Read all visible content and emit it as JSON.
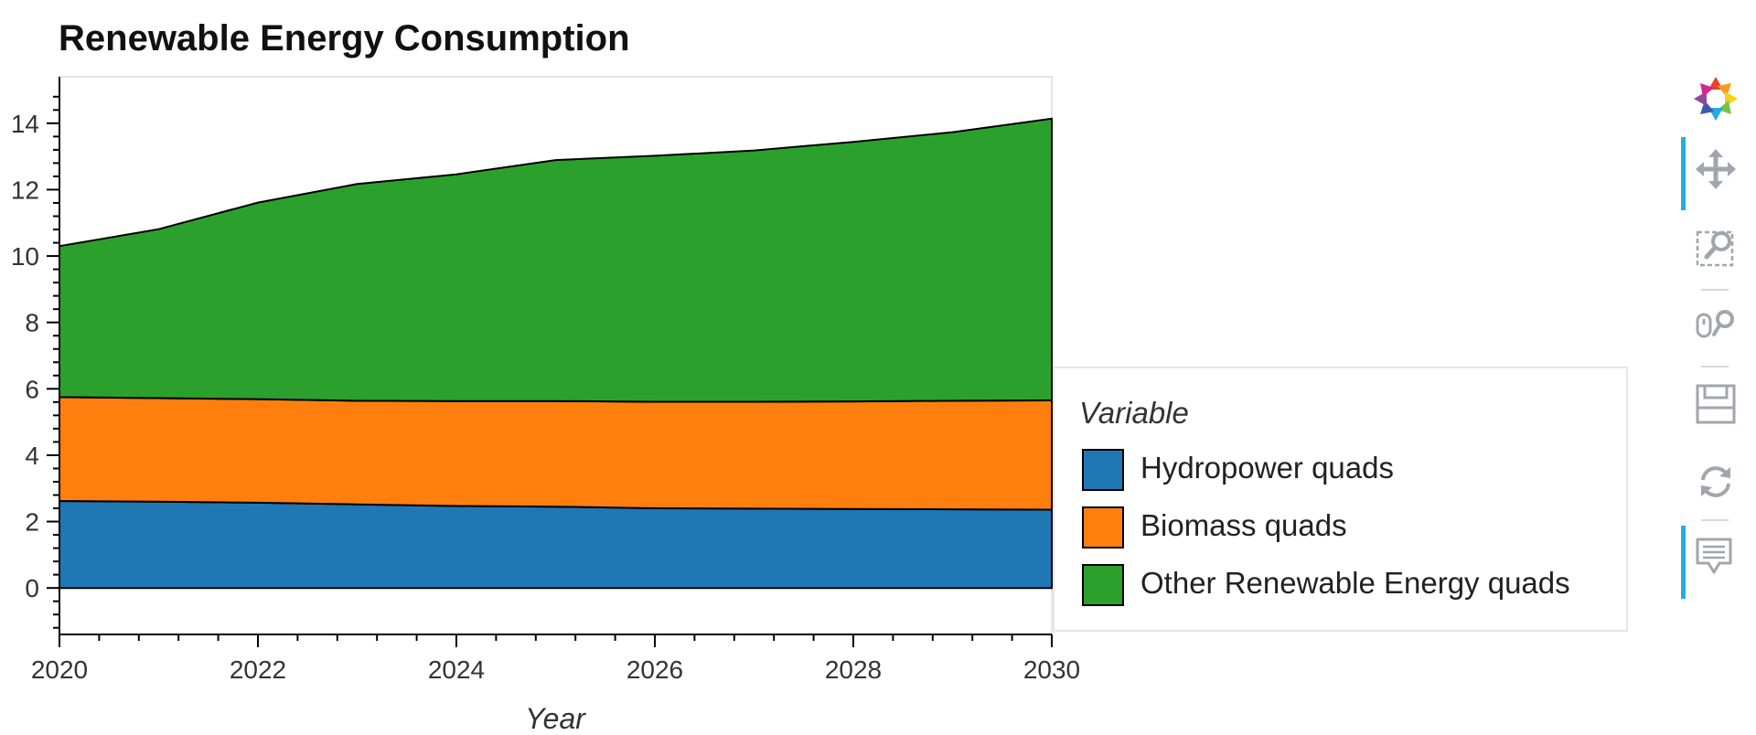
{
  "chart_data": {
    "type": "area",
    "stacked": true,
    "title": "Renewable Energy Consumption",
    "xlabel": "Year",
    "ylabel": "",
    "x": [
      2020,
      2021,
      2022,
      2023,
      2024,
      2025,
      2026,
      2027,
      2028,
      2029,
      2030
    ],
    "xlim": [
      2020,
      2030
    ],
    "ylim": [
      -1.4,
      15.4
    ],
    "x_ticks": [
      "2020",
      "2022",
      "2024",
      "2026",
      "2028",
      "2030"
    ],
    "y_ticks": [
      "0",
      "2",
      "4",
      "6",
      "8",
      "10",
      "12",
      "14"
    ],
    "series": [
      {
        "name": "Hydropower quads",
        "color": "#1f77b4",
        "values": [
          2.62,
          2.6,
          2.57,
          2.52,
          2.47,
          2.45,
          2.4,
          2.39,
          2.38,
          2.37,
          2.36
        ]
      },
      {
        "name": "Biomass quads",
        "color": "#ff7f0e",
        "values": [
          3.13,
          3.12,
          3.12,
          3.12,
          3.16,
          3.18,
          3.21,
          3.22,
          3.24,
          3.27,
          3.29
        ]
      },
      {
        "name": "Other Renewable Energy quads",
        "color": "#2ca02c",
        "values": [
          4.55,
          5.09,
          5.92,
          6.53,
          6.83,
          7.26,
          7.41,
          7.57,
          7.82,
          8.09,
          8.49
        ]
      }
    ],
    "legend": {
      "title": "Variable",
      "position": "right"
    },
    "grid": false
  },
  "toolbar": {
    "tools": [
      {
        "icon": "bokeh-logo-icon",
        "active": false
      },
      {
        "icon": "pan-icon",
        "active": true
      },
      {
        "icon": "box-zoom-icon",
        "active": false
      },
      {
        "icon": "wheel-zoom-icon",
        "active": false
      },
      {
        "icon": "save-icon",
        "active": false
      },
      {
        "icon": "reset-icon",
        "active": false
      },
      {
        "icon": "hover-icon",
        "active": true
      }
    ],
    "accent_color": "#26aae1"
  }
}
